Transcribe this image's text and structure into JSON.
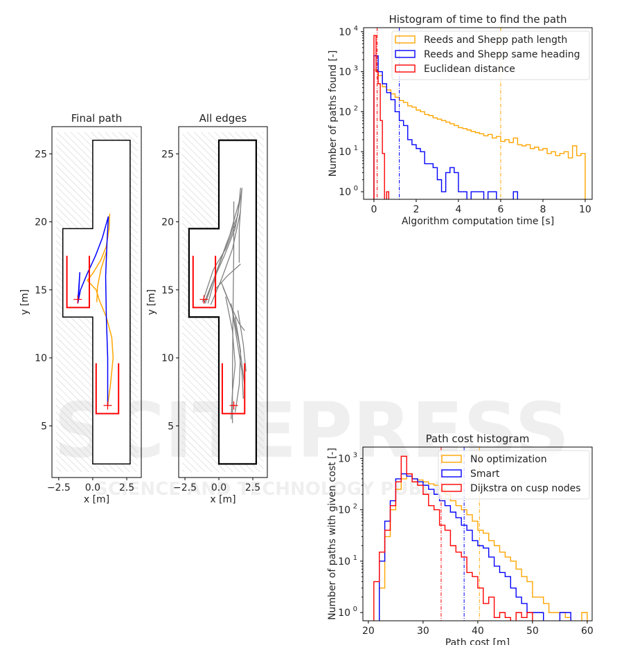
{
  "watermark": {
    "main": "SCITEPRESS",
    "sub": "SCIENCE AND TECHNOLOGY PUBLICATIONS"
  },
  "chart_data": [
    {
      "type": "map",
      "title": "Final path",
      "xlabel": "x [m]",
      "ylabel": "y [m]",
      "xlim": [
        -3.0,
        3.57
      ],
      "ylim": [
        1.2,
        27.0
      ],
      "xticks": [
        -2.5,
        0.0,
        2.5
      ],
      "xticklabels": [
        "−2.5",
        "0.0",
        "2.5"
      ],
      "yticks": [
        5,
        10,
        15,
        20,
        25
      ],
      "yticklabels": [
        "5",
        "10",
        "15",
        "20",
        "25"
      ],
      "corridor": [
        [
          0,
          2.2
        ],
        [
          2.75,
          2.2
        ],
        [
          2.75,
          26
        ],
        [
          0,
          26
        ],
        [
          0,
          19.5
        ],
        [
          -2.2,
          19.5
        ],
        [
          -2.2,
          13
        ],
        [
          0,
          13
        ],
        [
          0,
          2.2
        ]
      ],
      "parking_boxes": [
        [
          [
            -1.9,
            17.5
          ],
          [
            -1.9,
            13.7
          ],
          [
            -0.25,
            13.7
          ],
          [
            -0.25,
            17.5
          ]
        ],
        [
          [
            0.25,
            9.6
          ],
          [
            0.25,
            5.9
          ],
          [
            1.9,
            5.9
          ],
          [
            1.9,
            9.6
          ]
        ]
      ],
      "markers": [
        [
          -1.1,
          14.3
        ],
        [
          1.1,
          6.5
        ]
      ],
      "paths": [
        {
          "color": "#ffa500",
          "points": [
            [
              1.1,
              6.5
            ],
            [
              1.3,
              8
            ],
            [
              1.5,
              10
            ],
            [
              1.4,
              11.5
            ],
            [
              1.0,
              13
            ],
            [
              0.5,
              14.2
            ],
            [
              0.25,
              15
            ],
            [
              -0.4,
              15.7
            ],
            [
              0.0,
              16.2
            ],
            [
              0.6,
              17.2
            ],
            [
              1.0,
              18.2
            ],
            [
              1.2,
              19.5
            ],
            [
              1.25,
              20.6
            ]
          ]
        },
        {
          "color": "#ffa500",
          "points": [
            [
              0.3,
              14.1
            ],
            [
              0.35,
              15.2
            ],
            [
              0.6,
              16.5
            ],
            [
              1.0,
              17.8
            ]
          ]
        },
        {
          "color": "#0000ff",
          "points": [
            [
              1.1,
              6.5
            ],
            [
              1.1,
              10
            ],
            [
              1.0,
              13
            ],
            [
              0.95,
              16
            ],
            [
              1.05,
              18.5
            ],
            [
              1.15,
              20.4
            ],
            [
              0.7,
              18.8
            ],
            [
              0.2,
              17.5
            ],
            [
              -0.4,
              16.2
            ],
            [
              -0.9,
              15
            ],
            [
              -1.1,
              14.0
            ],
            [
              -0.95,
              16.3
            ],
            [
              -1.05,
              14.3
            ]
          ]
        }
      ]
    },
    {
      "type": "map",
      "title": "All edges",
      "xlabel": "x [m]",
      "ylabel": "y [m]",
      "xlim": [
        -2.96,
        3.57
      ],
      "ylim": [
        1.2,
        27.0
      ],
      "xticks": [
        -2.5,
        0.0,
        2.5
      ],
      "xticklabels": [
        "−2.5",
        "0.0",
        "2.5"
      ],
      "yticks": [
        5,
        10,
        15,
        20,
        25
      ],
      "yticklabels": [
        "5",
        "10",
        "15",
        "20",
        "25"
      ],
      "edges": [
        [
          [
            -1.0,
            14.0
          ],
          [
            -0.3,
            16
          ],
          [
            0.6,
            18.5
          ],
          [
            1.4,
            20.5
          ],
          [
            1.6,
            22.5
          ]
        ],
        [
          [
            -1.1,
            14.0
          ],
          [
            -0.5,
            15.5
          ],
          [
            0.4,
            17.5
          ],
          [
            1.2,
            19.5
          ],
          [
            1.7,
            22.4
          ]
        ],
        [
          [
            -0.8,
            14.0
          ],
          [
            -0.1,
            16.5
          ],
          [
            0.8,
            19
          ],
          [
            1.5,
            21.5
          ]
        ],
        [
          [
            -1.2,
            14.1
          ],
          [
            -0.4,
            16.5
          ],
          [
            0.5,
            18
          ],
          [
            1.3,
            20
          ]
        ],
        [
          [
            -0.6,
            13.9
          ],
          [
            0.2,
            15.8
          ],
          [
            1.0,
            18
          ],
          [
            1.6,
            20.8
          ]
        ],
        [
          [
            1.1,
            21.5
          ],
          [
            1.1,
            18
          ],
          [
            1.05,
            14
          ],
          [
            1.0,
            9
          ],
          [
            1.0,
            5.2
          ]
        ],
        [
          [
            1.7,
            22.5
          ],
          [
            1.5,
            19.5
          ],
          [
            1.5,
            17
          ]
        ],
        [
          [
            0.2,
            15.5
          ],
          [
            0.8,
            14
          ],
          [
            1.5,
            12.5
          ],
          [
            1.9,
            12
          ]
        ],
        [
          [
            0.3,
            15.2
          ],
          [
            1.0,
            13.5
          ],
          [
            1.5,
            11
          ],
          [
            1.9,
            8
          ],
          [
            1.9,
            6
          ]
        ],
        [
          [
            0.9,
            14
          ],
          [
            1.3,
            11.5
          ],
          [
            1.7,
            9
          ],
          [
            1.8,
            7
          ]
        ],
        [
          [
            0.5,
            14.5
          ],
          [
            1.0,
            12
          ],
          [
            1.2,
            9.5
          ],
          [
            1.0,
            7.5
          ],
          [
            0.9,
            5.5
          ]
        ],
        [
          [
            1.2,
            13
          ],
          [
            1.6,
            10.5
          ],
          [
            1.5,
            8
          ],
          [
            1.2,
            6
          ]
        ],
        [
          [
            1.4,
            13.5
          ],
          [
            1.8,
            11
          ],
          [
            2.0,
            9
          ]
        ],
        [
          [
            -0.3,
            15
          ],
          [
            0.6,
            16
          ],
          [
            1.6,
            16.9
          ]
        ]
      ],
      "corridor": [
        [
          0,
          2.2
        ],
        [
          2.75,
          2.2
        ],
        [
          2.75,
          26
        ],
        [
          0,
          26
        ],
        [
          0,
          19.5
        ],
        [
          -2.2,
          19.5
        ],
        [
          -2.2,
          13
        ],
        [
          0,
          13
        ],
        [
          0,
          2.2
        ]
      ],
      "parking_boxes": [
        [
          [
            -1.9,
            17.5
          ],
          [
            -1.9,
            13.7
          ],
          [
            -0.25,
            13.7
          ],
          [
            -0.25,
            17.5
          ]
        ],
        [
          [
            0.25,
            9.6
          ],
          [
            0.25,
            5.9
          ],
          [
            1.9,
            5.9
          ],
          [
            1.9,
            9.6
          ]
        ]
      ],
      "markers": [
        [
          -1.1,
          14.3
        ],
        [
          1.1,
          6.5
        ]
      ]
    },
    {
      "type": "histogram",
      "title": "Histogram of time to find the path",
      "xlabel": "Algorithm computation time [s]",
      "ylabel": "Number of paths found [-]",
      "yscale": "log",
      "xlim": [
        -0.49,
        10.33
      ],
      "ylim_log10": [
        -0.19,
        4.1
      ],
      "xticks": [
        0,
        2,
        4,
        6,
        8,
        10
      ],
      "xticklabels": [
        "0",
        "2",
        "4",
        "6",
        "8",
        "10"
      ],
      "yticks_log10": [
        0,
        1,
        2,
        3,
        4
      ],
      "legend_position": "top-right",
      "series": [
        {
          "name": "Reeds and Shepp path length",
          "color": "#ffa500",
          "start": 0,
          "bin_width": 0.2,
          "mean": 6.0,
          "values": [
            1100,
            800,
            420,
            350,
            280,
            230,
            190,
            170,
            140,
            130,
            110,
            100,
            85,
            80,
            70,
            65,
            60,
            55,
            50,
            45,
            40,
            38,
            35,
            32,
            30,
            28,
            25,
            27,
            22,
            24,
            18,
            20,
            17,
            22,
            15,
            14,
            15,
            12,
            13,
            11,
            12,
            9,
            10,
            8,
            9,
            10,
            7,
            14,
            8,
            9
          ]
        },
        {
          "name": "Reeds and Shepp same heading",
          "color": "#0000ff",
          "start": 0,
          "bin_width": 0.2,
          "mean": 1.2,
          "values": [
            2500,
            1000,
            500,
            300,
            200,
            100,
            60,
            45,
            20,
            15,
            12,
            10,
            5,
            5,
            4,
            2,
            1,
            3,
            4,
            3,
            1,
            1,
            0,
            1,
            1,
            1,
            0,
            1,
            1,
            0,
            0,
            0,
            0,
            1,
            0
          ]
        },
        {
          "name": "Euclidean distance",
          "color": "#ff0000",
          "start": 0,
          "bin_width": 0.1,
          "mean": 0.15,
          "values": [
            8000,
            1000,
            500,
            60,
            9,
            0,
            1
          ]
        }
      ]
    },
    {
      "type": "histogram",
      "title": "Path cost histogram",
      "xlabel": "Path cost [m]",
      "ylabel": "Number of paths with given cost [-]",
      "yscale": "log",
      "xlim": [
        19.0,
        60.9
      ],
      "ylim_log10": [
        -0.16,
        3.22
      ],
      "xticks": [
        20,
        30,
        40,
        50,
        60
      ],
      "xticklabels": [
        "20",
        "30",
        "40",
        "50",
        "60"
      ],
      "yticks_log10": [
        0,
        1,
        2,
        3
      ],
      "legend_position": "top-right",
      "series": [
        {
          "name": "No optimization",
          "color": "#ffa500",
          "start": 22,
          "bin_width": 1,
          "mean": 40.3,
          "values": [
            3,
            30,
            100,
            250,
            400,
            500,
            400,
            380,
            350,
            320,
            300,
            250,
            200,
            150,
            120,
            100,
            80,
            60,
            40,
            35,
            25,
            20,
            15,
            12,
            10,
            7,
            5,
            4,
            2,
            2,
            1.5,
            1,
            1,
            1,
            0.8,
            0,
            0,
            1
          ]
        },
        {
          "name": "Smart",
          "color": "#0000ff",
          "start": 22,
          "bin_width": 1,
          "mean": 37.5,
          "values": [
            10,
            60,
            150,
            400,
            500,
            450,
            400,
            350,
            300,
            250,
            200,
            150,
            120,
            90,
            70,
            50,
            40,
            25,
            20,
            18,
            12,
            8,
            6,
            5,
            3,
            2,
            1.5,
            1,
            1,
            1,
            0,
            0,
            0,
            1,
            1
          ]
        },
        {
          "name": "Dijkstra on cusp nodes",
          "color": "#ff0000",
          "start": 21,
          "bin_width": 1,
          "mean": 33.3,
          "values": [
            4,
            15,
            40,
            120,
            350,
            1100,
            500,
            350,
            300,
            200,
            120,
            100,
            50,
            40,
            20,
            15,
            12,
            6,
            5,
            3,
            1.5,
            2,
            0.8,
            1,
            0.8,
            0,
            1,
            0.8,
            1
          ]
        }
      ]
    }
  ]
}
